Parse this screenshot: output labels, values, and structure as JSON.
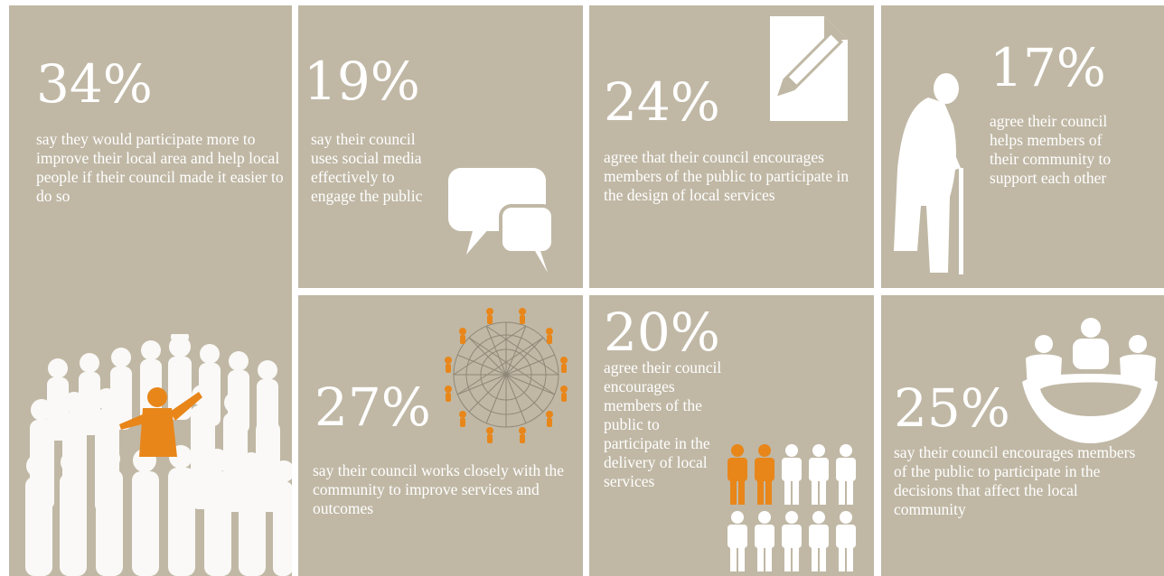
{
  "colors": {
    "tile_background": "#c0b8a5",
    "text": "#ffffff",
    "accent": "#e8861a",
    "icon_white": "#ffffff"
  },
  "stats": [
    {
      "id": "participate-more",
      "percent": "34%",
      "description": "say they would participate more to improve their local area and help local people if their council made it easier to do so",
      "icon": "crowd-icon"
    },
    {
      "id": "social-media",
      "percent": "19%",
      "description": "say their council uses social media effectively to engage the public",
      "icon": "speech-bubbles-icon"
    },
    {
      "id": "design-services",
      "percent": "24%",
      "description": "agree that their council encourages members of the public to participate in the design of local services",
      "icon": "document-pencil-icon"
    },
    {
      "id": "community-support",
      "percent": "17%",
      "description": "agree their council helps members of their community to support each other",
      "icon": "elderly-person-icon"
    },
    {
      "id": "works-closely",
      "percent": "27%",
      "description": "say their council works closely with the community to improve services and outcomes",
      "icon": "network-circle-icon"
    },
    {
      "id": "delivery-services",
      "percent": "20%",
      "description": "agree their council encourages members of the public to participate in the delivery of local services",
      "icon": "people-grid-icon",
      "highlighted_people": 2,
      "total_people": 10
    },
    {
      "id": "decisions",
      "percent": "25%",
      "description": "say their council encourages members of the public to participate in the decisions that affect the local community",
      "icon": "meeting-table-icon"
    }
  ]
}
